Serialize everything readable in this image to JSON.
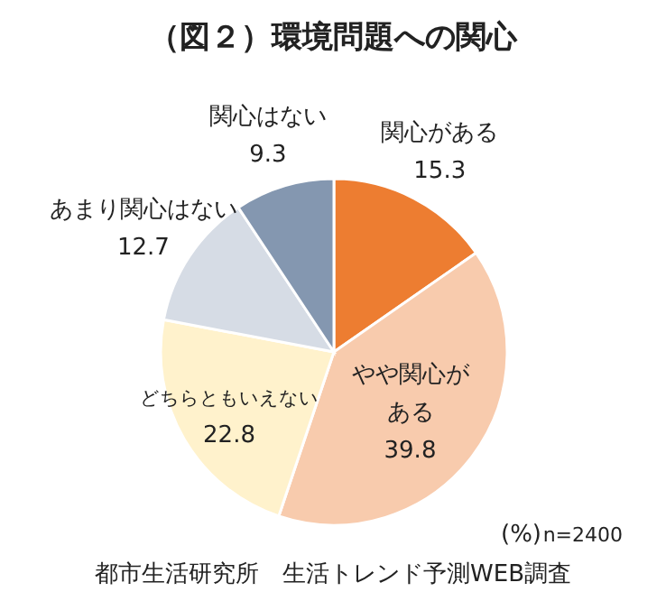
{
  "chart_data": {
    "type": "pie",
    "title": "（図２）環境問題への関心",
    "categories": [
      "関心がある",
      "やや関心がある",
      "どちらともいえない",
      "あまり関心はない",
      "関心はない"
    ],
    "values": [
      15.3,
      39.8,
      22.8,
      12.7,
      9.3
    ],
    "colors": [
      "#ed7d31",
      "#f8cbad",
      "#fff2cc",
      "#d6dce5",
      "#8497b0"
    ],
    "data_labels": true,
    "annotations": [
      "(%)",
      "n=2400",
      "都市生活研究所　生活トレンド予測WEB調査"
    ]
  }
}
